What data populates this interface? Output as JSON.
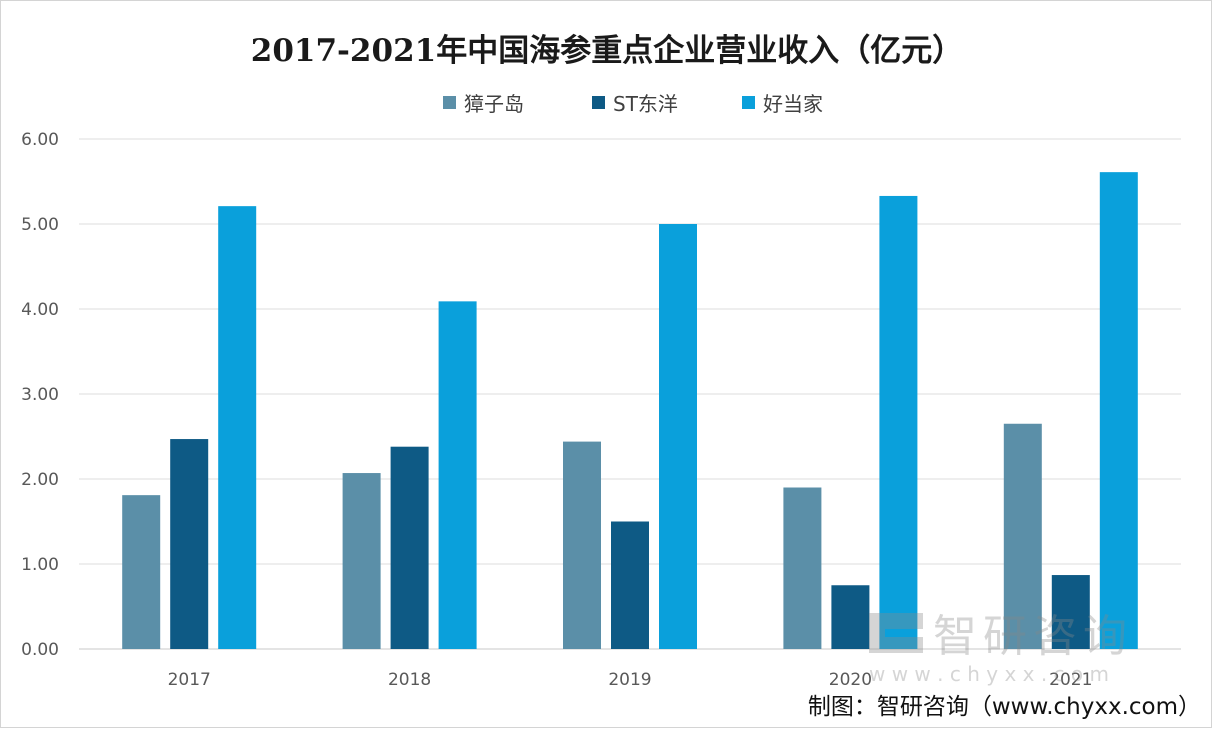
{
  "chart_data": {
    "type": "bar",
    "title": "2017-2021年中国海参重点企业营业收入（亿元）",
    "categories": [
      "2017",
      "2018",
      "2019",
      "2020",
      "2021"
    ],
    "series": [
      {
        "name": "獐子岛",
        "values": [
          1.81,
          2.07,
          2.44,
          1.9,
          2.65
        ]
      },
      {
        "name": "ST东洋",
        "values": [
          2.47,
          2.38,
          1.5,
          0.75,
          0.87
        ]
      },
      {
        "name": "好当家",
        "values": [
          5.21,
          4.09,
          5.0,
          5.33,
          5.61
        ]
      }
    ],
    "yticks": [
      "0.00",
      "1.00",
      "2.00",
      "3.00",
      "4.00",
      "5.00",
      "6.00"
    ],
    "ylim": [
      0,
      6
    ],
    "grid": true,
    "legend": "top-center",
    "colors": [
      "#5b8fa8",
      "#0e5a85",
      "#0aa0db"
    ]
  },
  "watermark": {
    "name": "智研咨询",
    "url": "w w w . c h y x x . c o m"
  },
  "source": "制图：智研咨询（www.chyxx.com）"
}
